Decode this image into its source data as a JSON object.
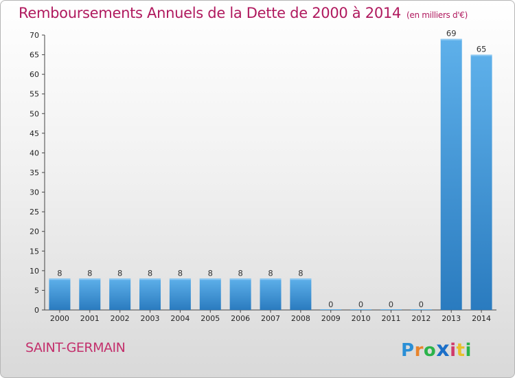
{
  "header": {
    "title": "Remboursements Annuels de la Dette de 2000 à 2014",
    "subtitle": "(en milliers d'€)"
  },
  "commune": "SAINT-GERMAIN",
  "logo": {
    "letters": [
      "P",
      "r",
      "o",
      "x",
      "i",
      "t",
      "i"
    ],
    "colors": [
      "#2a8fd6",
      "#e8842c",
      "#2bb34a",
      "#1b6fc8",
      "#d03a6a",
      "#e8c02c",
      "#2bb34a"
    ]
  },
  "chart_data": {
    "type": "bar",
    "title": "Remboursements Annuels de la Dette de 2000 à 2014",
    "subtitle": "(en milliers d'€)",
    "categories": [
      "2000",
      "2001",
      "2002",
      "2003",
      "2004",
      "2005",
      "2006",
      "2007",
      "2008",
      "2009",
      "2010",
      "2011",
      "2012",
      "2013",
      "2014"
    ],
    "values": [
      8,
      8,
      8,
      8,
      8,
      8,
      8,
      8,
      8,
      0,
      0,
      0,
      0,
      69,
      65
    ],
    "ylim": [
      0,
      70
    ],
    "yticks": [
      0,
      5,
      10,
      15,
      20,
      25,
      30,
      35,
      40,
      45,
      50,
      55,
      60,
      65,
      70
    ],
    "xlabel": "",
    "ylabel": "",
    "grid": false,
    "bar_color_top": "#5eb0ea",
    "bar_color_bottom": "#2a7bbf"
  }
}
